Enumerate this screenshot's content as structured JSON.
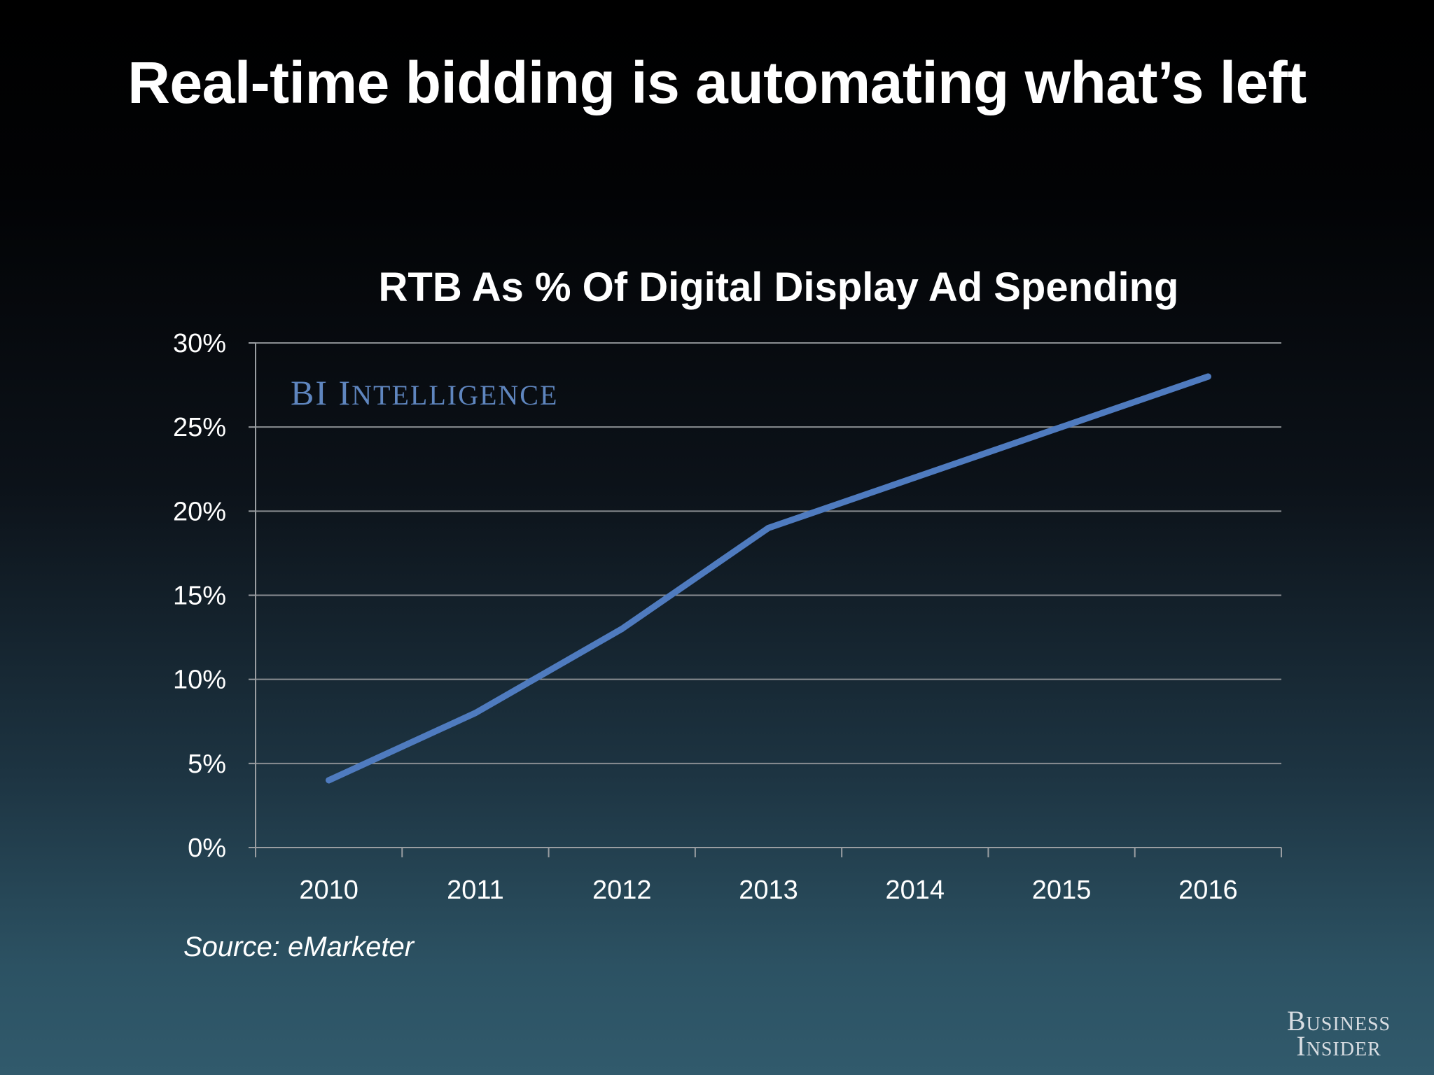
{
  "slide": {
    "title": "Real-time bidding is automating what’s left",
    "watermark": "BI Intelligence",
    "source": "Source: eMarketer",
    "logo": [
      "Business",
      "Insider"
    ]
  },
  "colors": {
    "line": "#4f7bbf",
    "grid": "#8a8e92",
    "axis": "#9a9ea2",
    "watermark": "#5f86bf"
  },
  "chart_data": {
    "type": "line",
    "title": "RTB As % Of Digital Display Ad Spending",
    "xlabel": "",
    "ylabel": "",
    "categories": [
      "2010",
      "2011",
      "2012",
      "2013",
      "2014",
      "2015",
      "2016"
    ],
    "series": [
      {
        "values": [
          4,
          8,
          13,
          19,
          22,
          25,
          28
        ]
      }
    ],
    "ylim": [
      0,
      30
    ],
    "yticks": [
      0,
      5,
      10,
      15,
      20,
      25,
      30
    ],
    "ytick_labels": [
      "0%",
      "5%",
      "10%",
      "15%",
      "20%",
      "25%",
      "30%"
    ],
    "grid": true,
    "legend": "none"
  }
}
